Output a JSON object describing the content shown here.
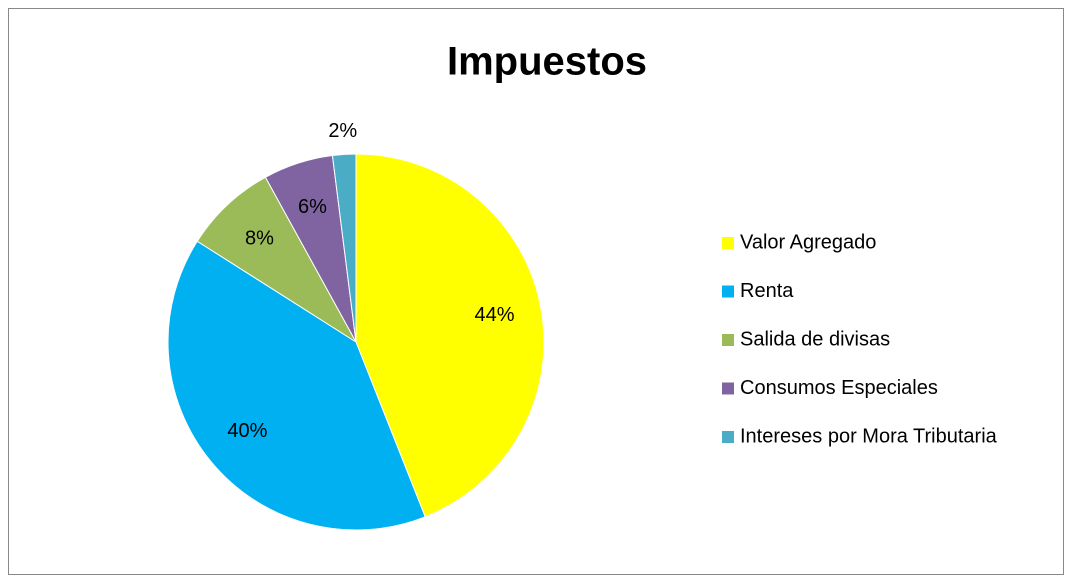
{
  "chart_data": {
    "type": "pie",
    "title": "Impuestos",
    "categories": [
      "Valor Agregado",
      "Renta",
      "Salida de divisas",
      "Consumos Especiales",
      "Intereses por Mora Tributaria"
    ],
    "values": [
      44,
      40,
      8,
      6,
      2
    ],
    "value_labels": [
      "44%",
      "40%",
      "8%",
      "6%",
      "2%"
    ],
    "colors": [
      "#FFFF00",
      "#00B0F0",
      "#9BBB59",
      "#8064A2",
      "#4BACC6"
    ],
    "legend": "right"
  }
}
